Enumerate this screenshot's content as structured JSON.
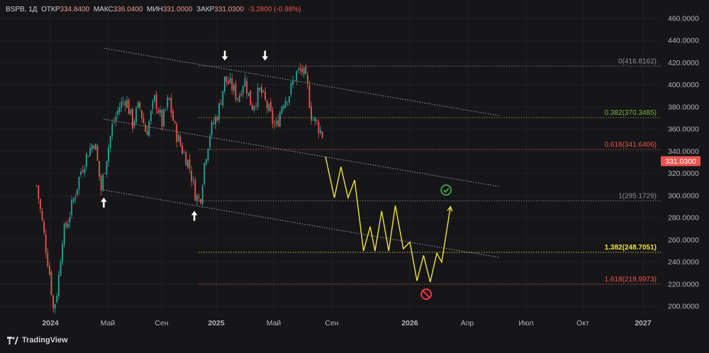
{
  "header": {
    "symbol": "BSPB, 1Д",
    "open_label": "ОТКР",
    "open": "334.8400",
    "high_label": "МАКС",
    "high": "336.0400",
    "low_label": "МИН",
    "low": "331.0000",
    "close_label": "ЗАКР",
    "close": "331.0300",
    "change": "-3.2800 (-0.98%)"
  },
  "brand": {
    "name": "TradingView"
  },
  "colors": {
    "bg": "#161618",
    "up": "#26a69a",
    "down": "#ef5350",
    "forecast": "#f0e442",
    "price_tag": "#ef5350",
    "text": "#d1d4dc"
  },
  "chart_data": {
    "type": "candlestick",
    "price_axis": {
      "min": 195,
      "max": 465,
      "ticks": [
        "460.0000",
        "440.0000",
        "420.0000",
        "400.0000",
        "380.0000",
        "360.0000",
        "340.0000",
        "320.0000",
        "300.0000",
        "280.0000",
        "260.0000",
        "240.0000",
        "220.0000",
        "200.0000"
      ]
    },
    "time_axis": {
      "labels": [
        "2024",
        "Май",
        "Сен",
        "2025",
        "Май",
        "Сен",
        "2026",
        "Апр",
        "Июл",
        "Окт",
        "2027"
      ]
    },
    "last_price": "331.0300",
    "fib_levels": [
      {
        "label": "0(416.8162)",
        "value": 416.8162,
        "color": "#8a8d96"
      },
      {
        "label": "0.382(370.3485)",
        "value": 370.3485,
        "color": "#7cb342"
      },
      {
        "label": "0.618(341.6406)",
        "value": 341.6406,
        "color": "#ef5350"
      },
      {
        "label": "1(295.1729)",
        "value": 295.1729,
        "color": "#8a8d96"
      },
      {
        "label": "1.382(248.7051)",
        "value": 248.7051,
        "color": "#f0e442"
      },
      {
        "label": "1.618(219.9973)",
        "value": 219.9973,
        "color": "#ef5350"
      }
    ],
    "price_path": [
      [
        "2023-12-01",
        309
      ],
      [
        "2023-12-10",
        285
      ],
      [
        "2023-12-20",
        258
      ],
      [
        "2024-01-01",
        225
      ],
      [
        "2024-01-08",
        196
      ],
      [
        "2024-01-18",
        218
      ],
      [
        "2024-01-28",
        262
      ],
      [
        "2024-02-10",
        278
      ],
      [
        "2024-02-25",
        300
      ],
      [
        "2024-03-10",
        322
      ],
      [
        "2024-03-25",
        338
      ],
      [
        "2024-04-10",
        350
      ],
      [
        "2024-04-25",
        305
      ],
      [
        "2024-05-05",
        330
      ],
      [
        "2024-05-20",
        362
      ],
      [
        "2024-06-05",
        380
      ],
      [
        "2024-06-20",
        388
      ],
      [
        "2024-07-05",
        365
      ],
      [
        "2024-07-20",
        382
      ],
      [
        "2024-08-05",
        356
      ],
      [
        "2024-08-25",
        388
      ],
      [
        "2024-09-10",
        365
      ],
      [
        "2024-09-25",
        388
      ],
      [
        "2024-10-10",
        358
      ],
      [
        "2024-10-25",
        342
      ],
      [
        "2024-11-10",
        328
      ],
      [
        "2024-11-25",
        300
      ],
      [
        "2024-12-05",
        295
      ],
      [
        "2024-12-15",
        330
      ],
      [
        "2024-12-28",
        358
      ],
      [
        "2025-01-15",
        375
      ],
      [
        "2025-01-30",
        405
      ],
      [
        "2025-02-15",
        398
      ],
      [
        "2025-03-01",
        388
      ],
      [
        "2025-03-15",
        406
      ],
      [
        "2025-04-01",
        380
      ],
      [
        "2025-04-20",
        395
      ],
      [
        "2025-05-10",
        376
      ],
      [
        "2025-05-25",
        360
      ],
      [
        "2025-06-10",
        385
      ],
      [
        "2025-06-25",
        392
      ],
      [
        "2025-07-10",
        410
      ],
      [
        "2025-07-25",
        413
      ],
      [
        "2025-08-05",
        398
      ],
      [
        "2025-08-15",
        370
      ],
      [
        "2025-08-25",
        366
      ],
      [
        "2025-09-08",
        355
      ],
      [
        "2025-09-12",
        331
      ]
    ],
    "forecast_path": [
      [
        "2025-09-15",
        335
      ],
      [
        "2025-10-05",
        298
      ],
      [
        "2025-10-20",
        326
      ],
      [
        "2025-11-05",
        298
      ],
      [
        "2025-11-20",
        314
      ],
      [
        "2025-12-10",
        250
      ],
      [
        "2025-12-25",
        272
      ],
      [
        "2026-01-05",
        250
      ],
      [
        "2026-01-20",
        286
      ],
      [
        "2026-02-05",
        250
      ],
      [
        "2026-02-20",
        291
      ],
      [
        "2026-03-10",
        252
      ],
      [
        "2026-03-25",
        258
      ],
      [
        "2026-04-10",
        223
      ],
      [
        "2026-04-25",
        246
      ],
      [
        "2026-05-10",
        222
      ],
      [
        "2026-05-25",
        248
      ],
      [
        "2026-06-05",
        240
      ],
      [
        "2026-06-25",
        290
      ]
    ],
    "channel_lines": [
      {
        "from": [
          "2024-05-01",
          433
        ],
        "to": [
          "2026-10-15",
          372
        ]
      },
      {
        "from": [
          "2024-05-01",
          369
        ],
        "to": [
          "2026-10-15",
          308
        ]
      },
      {
        "from": [
          "2024-05-01",
          305
        ],
        "to": [
          "2026-10-15",
          244
        ]
      }
    ],
    "markers": [
      {
        "type": "down-arrow",
        "date": "2025-01-30",
        "price": 425
      },
      {
        "type": "down-arrow",
        "date": "2025-05-01",
        "price": 425
      },
      {
        "type": "up-arrow",
        "date": "2024-05-01",
        "price": 295
      },
      {
        "type": "up-arrow",
        "date": "2024-11-22",
        "price": 283
      },
      {
        "type": "check-icon",
        "date": "2026-06-15",
        "price": 305
      },
      {
        "type": "stop-icon",
        "date": "2026-05-01",
        "price": 211
      }
    ]
  }
}
